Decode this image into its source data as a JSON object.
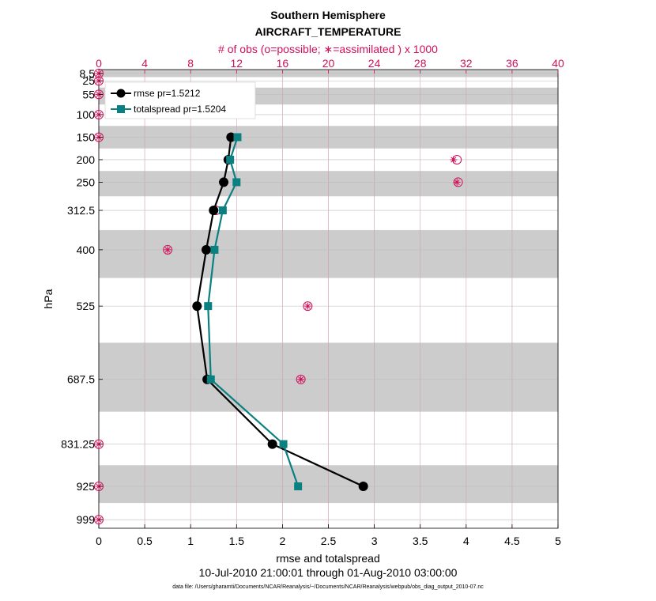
{
  "chart_data": {
    "type": "line",
    "title": "Southern Hemisphere",
    "subtitle": "AIRCRAFT_TEMPERATURE",
    "top_axis_label": "# of obs (o=possible; ∗=assimilated ) x 1000",
    "xlabel": "rmse and totalspread",
    "ylabel": "hPa",
    "date_range": "10-Jul-2010 21:00:01 through 01-Aug-2010 03:00:00",
    "footnote": "data file: /Users/gharamti/Documents/NCAR/Reanalysis/~/Documents/NCAR/Reanalysis/webpub/obs_diag_output_2010-07.nc",
    "xlim": [
      0,
      5
    ],
    "x_ticks": [
      "0",
      "0.5",
      "1",
      "1.5",
      "2",
      "2.5",
      "3",
      "3.5",
      "4",
      "4.5",
      "5"
    ],
    "top_xlim": [
      0,
      40
    ],
    "top_ticks": [
      "0",
      "4",
      "8",
      "12",
      "16",
      "20",
      "24",
      "28",
      "32",
      "36",
      "40"
    ],
    "y_ticks": [
      "8.5",
      "25",
      "55",
      "100",
      "150",
      "200",
      "250",
      "312.5",
      "400",
      "525",
      "687.5",
      "831.25",
      "925",
      "999"
    ],
    "levels": [
      8.5,
      25,
      55,
      100,
      150,
      200,
      250,
      312.5,
      400,
      525,
      687.5,
      831.25,
      925,
      999
    ],
    "grid": true,
    "legend_position": "top-left",
    "series": [
      {
        "name": "rmse pr=1.5212",
        "color": "#000000",
        "marker": "circle",
        "levels": [
          150,
          200,
          250,
          312.5,
          400,
          525,
          687.5,
          831.25,
          925
        ],
        "values": [
          1.44,
          1.41,
          1.36,
          1.25,
          1.17,
          1.07,
          1.18,
          1.89,
          2.88
        ]
      },
      {
        "name": "totalspread pr=1.5204",
        "color": "#0a8080",
        "marker": "square",
        "levels": [
          150,
          200,
          250,
          312.5,
          400,
          525,
          687.5,
          831.25,
          925
        ],
        "values": [
          1.51,
          1.43,
          1.5,
          1.35,
          1.26,
          1.19,
          1.22,
          2.01,
          2.17
        ]
      }
    ],
    "obs_counts": {
      "units": "thousands",
      "levels": [
        8.5,
        25,
        55,
        100,
        150,
        200,
        250,
        312.5,
        400,
        525,
        687.5,
        831.25,
        925,
        999
      ],
      "possible": [
        0,
        0,
        0,
        0,
        0,
        31.2,
        31.3,
        10.2,
        6.0,
        18.2,
        17.6,
        0,
        0,
        0
      ],
      "assimilated": [
        0,
        0,
        0,
        0,
        0,
        30.9,
        31.2,
        10.1,
        6.0,
        18.2,
        17.6,
        0,
        0,
        0
      ]
    }
  }
}
